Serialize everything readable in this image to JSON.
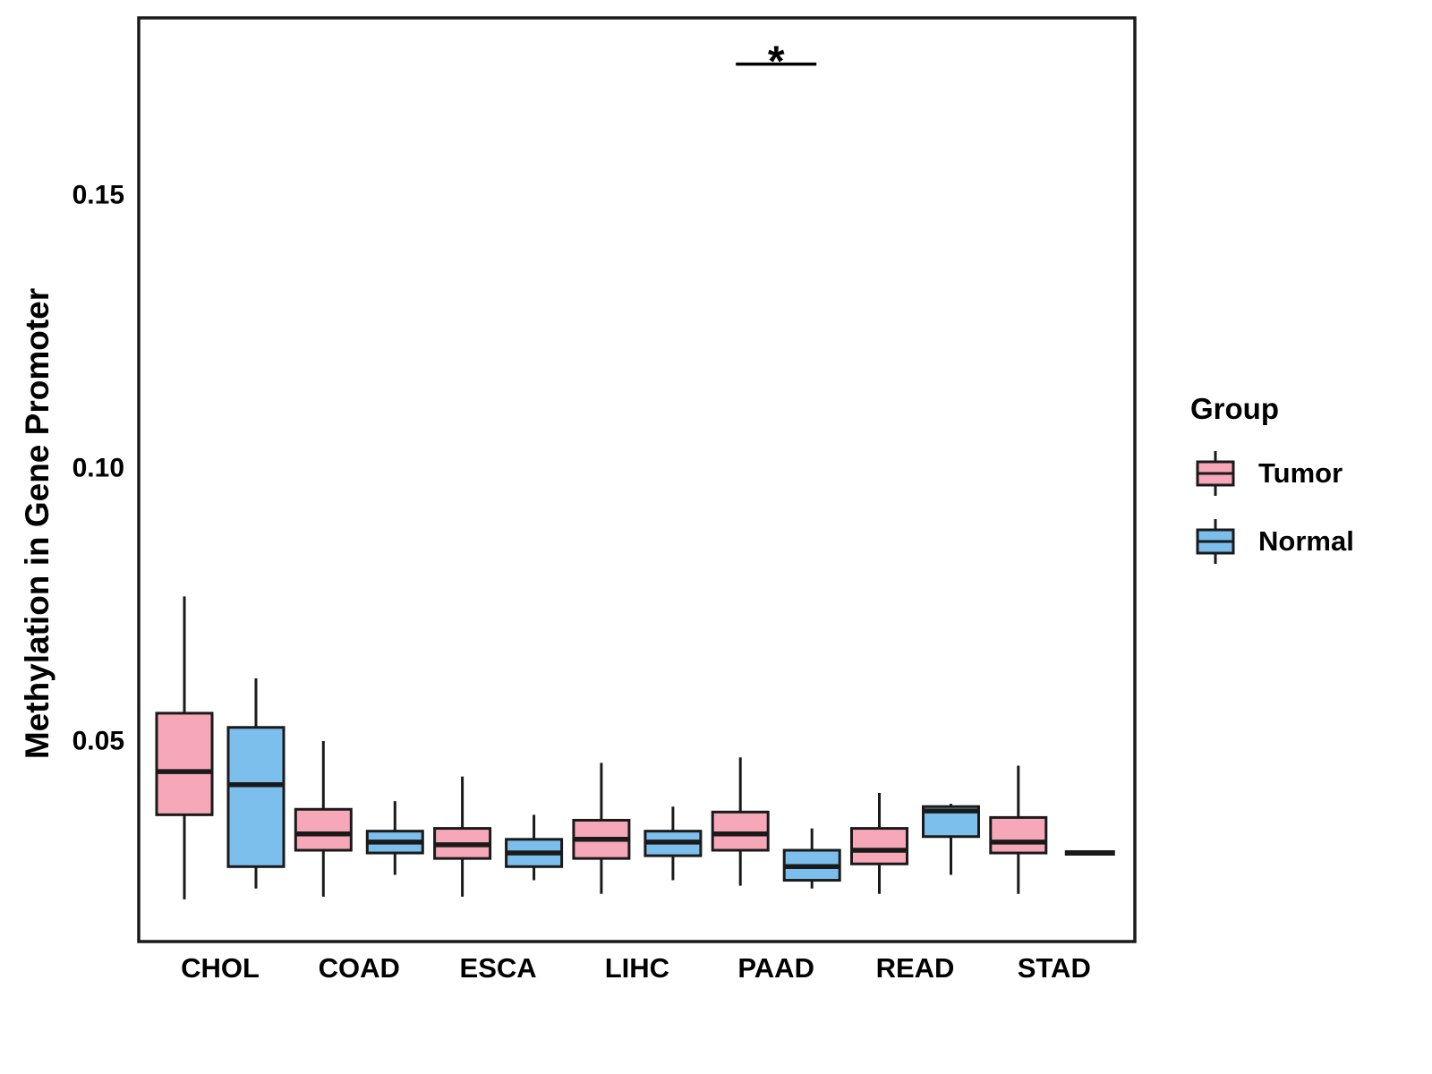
{
  "chart_data": {
    "type": "boxplot",
    "title": "",
    "xlabel": "",
    "ylabel": "Methylation in Gene Promoter",
    "categories": [
      "CHOL",
      "COAD",
      "ESCA",
      "LIHC",
      "PAAD",
      "READ",
      "STAD"
    ],
    "yticks": [
      0.05,
      0.1,
      0.15
    ],
    "ytick_labels": [
      "0.05",
      "0.10",
      "0.15"
    ],
    "ylim": [
      0.012,
      0.185
    ],
    "grid": "off",
    "legend": {
      "title": "Group",
      "position": "right",
      "entries": [
        {
          "label": "Tumor",
          "color": "#F7A8B8"
        },
        {
          "label": "Normal",
          "color": "#7CBFEC"
        }
      ]
    },
    "series": [
      {
        "name": "Tumor",
        "color": "#F7A8B8",
        "boxes": [
          {
            "min": 0.021,
            "q1": 0.0365,
            "median": 0.0444,
            "q3": 0.0551,
            "max": 0.0765
          },
          {
            "min": 0.0215,
            "q1": 0.03,
            "median": 0.033,
            "q3": 0.0375,
            "max": 0.05
          },
          {
            "min": 0.0215,
            "q1": 0.0285,
            "median": 0.031,
            "q3": 0.034,
            "max": 0.0435
          },
          {
            "min": 0.022,
            "q1": 0.0285,
            "median": 0.032,
            "q3": 0.0355,
            "max": 0.046
          },
          {
            "min": 0.0235,
            "q1": 0.03,
            "median": 0.033,
            "q3": 0.037,
            "max": 0.047
          },
          {
            "min": 0.022,
            "q1": 0.0275,
            "median": 0.03,
            "q3": 0.034,
            "max": 0.0405
          },
          {
            "min": 0.022,
            "q1": 0.0295,
            "median": 0.0315,
            "q3": 0.036,
            "max": 0.0455
          }
        ]
      },
      {
        "name": "Normal",
        "color": "#7CBFEC",
        "boxes": [
          {
            "min": 0.023,
            "q1": 0.027,
            "median": 0.042,
            "q3": 0.0525,
            "max": 0.0615
          },
          {
            "min": 0.0255,
            "q1": 0.0295,
            "median": 0.0315,
            "q3": 0.0335,
            "max": 0.039
          },
          {
            "min": 0.0245,
            "q1": 0.027,
            "median": 0.0295,
            "q3": 0.032,
            "max": 0.0365
          },
          {
            "min": 0.0245,
            "q1": 0.029,
            "median": 0.0315,
            "q3": 0.0335,
            "max": 0.038
          },
          {
            "min": 0.023,
            "q1": 0.0245,
            "median": 0.027,
            "q3": 0.03,
            "max": 0.034
          },
          {
            "min": 0.0255,
            "q1": 0.0325,
            "median": 0.0372,
            "q3": 0.038,
            "max": 0.0385
          },
          {
            "min": 0.0295,
            "q1": 0.0295,
            "median": 0.0295,
            "q3": 0.0295,
            "max": 0.0295
          }
        ]
      }
    ],
    "annotations": [
      {
        "label": "*",
        "category_index": 4,
        "y_value": 0.174
      }
    ]
  }
}
